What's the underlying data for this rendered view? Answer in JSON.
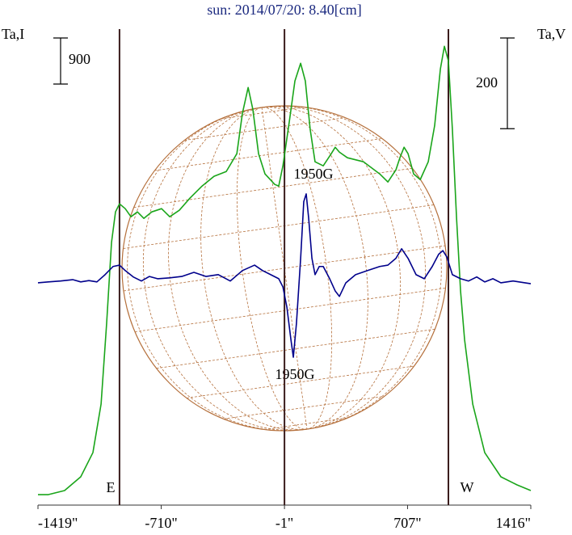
{
  "chart_data": {
    "type": "line",
    "title": "sun: 2014/07/20: 8.40[cm]",
    "y_label": "Ta,I",
    "y2_label": "Ta,V",
    "xlim": [
      -1419,
      1416
    ],
    "xticks": [
      {
        "value": -1419,
        "label": "-1419\""
      },
      {
        "value": -710,
        "label": "-710\""
      },
      {
        "value": -1,
        "label": "-1\""
      },
      {
        "value": 707,
        "label": "707\""
      },
      {
        "value": 1416,
        "label": "1416\""
      }
    ],
    "ylim": [
      0,
      9400
    ],
    "y2lim": [
      -490,
      570
    ],
    "vlines": [
      -950,
      -1,
      942
    ],
    "scale_bars": [
      {
        "value": 900,
        "axis": "y"
      },
      {
        "value": 200,
        "axis": "y2"
      }
    ],
    "annotations": [
      "1950G",
      "1950G",
      "E",
      "W"
    ],
    "series": [
      {
        "name": "Ta,I",
        "color": "#1aa51a",
        "axis": "y",
        "x": [
          -1419,
          -1359,
          -1266,
          -1173,
          -1103,
          -1056,
          -1024,
          -996,
          -973,
          -950,
          -917,
          -884,
          -847,
          -810,
          -764,
          -708,
          -661,
          -606,
          -545,
          -475,
          -406,
          -336,
          -275,
          -243,
          -210,
          -183,
          -150,
          -113,
          -57,
          -34,
          -10,
          27,
          59,
          92,
          119,
          147,
          175,
          222,
          268,
          291,
          315,
          361,
          454,
          547,
          594,
          640,
          663,
          687,
          710,
          742,
          780,
          826,
          863,
          896,
          919,
          942,
          965,
          989,
          1012,
          1035,
          1082,
          1151,
          1244,
          1337,
          1416
        ],
        "values": [
          205,
          205,
          284,
          553,
          1026,
          1974,
          3553,
          5132,
          5732,
          5890,
          5795,
          5637,
          5732,
          5605,
          5732,
          5795,
          5637,
          5763,
          6000,
          6237,
          6427,
          6521,
          6869,
          7658,
          8163,
          7737,
          6869,
          6474,
          6269,
          6237,
          6632,
          7500,
          8290,
          8637,
          8290,
          7342,
          6711,
          6632,
          6869,
          6995,
          6900,
          6790,
          6711,
          6474,
          6316,
          6553,
          6790,
          6995,
          6869,
          6474,
          6363,
          6711,
          7421,
          8527,
          8969,
          8685,
          7342,
          5605,
          4184,
          3237,
          1974,
          1026,
          553,
          395,
          284
        ]
      },
      {
        "name": "Ta,V",
        "color": "#00008b",
        "axis": "y2",
        "x": [
          -1419,
          -1359,
          -1289,
          -1219,
          -1173,
          -1126,
          -1080,
          -1033,
          -987,
          -950,
          -917,
          -871,
          -824,
          -778,
          -731,
          -661,
          -592,
          -522,
          -452,
          -382,
          -313,
          -243,
          -173,
          -127,
          -80,
          -34,
          -10,
          13,
          36,
          50,
          68,
          92,
          110,
          124,
          138,
          157,
          175,
          199,
          222,
          259,
          291,
          315,
          352,
          408,
          477,
          547,
          594,
          640,
          673,
          710,
          756,
          803,
          849,
          886,
          910,
          933,
          965,
          1012,
          1058,
          1105,
          1151,
          1198,
          1244,
          1314,
          1416
        ],
        "values": [
          0,
          2,
          4,
          7,
          2,
          5,
          2,
          18,
          36,
          39,
          27,
          13,
          4,
          14,
          9,
          11,
          14,
          23,
          14,
          18,
          4,
          27,
          39,
          27,
          18,
          9,
          -9,
          -54,
          -125,
          -164,
          -89,
          54,
          179,
          196,
          143,
          54,
          18,
          36,
          36,
          9,
          -18,
          -30,
          0,
          18,
          27,
          36,
          39,
          54,
          75,
          54,
          18,
          9,
          36,
          63,
          71,
          57,
          18,
          9,
          4,
          13,
          2,
          9,
          0,
          4,
          -2
        ]
      }
    ]
  }
}
